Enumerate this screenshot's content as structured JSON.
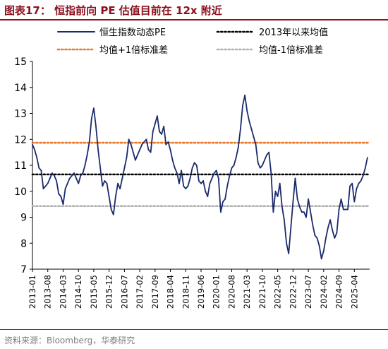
{
  "header": {
    "title": "图表17：  恒指前向 PE 估值目前在 12x 附近"
  },
  "footer": {
    "source": "资料来源：Bloomberg，华泰研究"
  },
  "chart_data": {
    "type": "line",
    "ylim": [
      7,
      15
    ],
    "yticks": [
      7,
      8,
      9,
      10,
      11,
      12,
      13,
      14,
      15
    ],
    "x_tick_labels": [
      "2013-01",
      "2013-08",
      "2014-03",
      "2014-10",
      "2015-05",
      "2015-12",
      "2016-07",
      "2017-02",
      "2017-09",
      "2018-04",
      "2018-11",
      "2019-06",
      "2020-01",
      "2020-08",
      "2021-03",
      "2021-10",
      "2022-05",
      "2022-12",
      "2023-07",
      "2024-02",
      "2024-09",
      "2025-04"
    ],
    "x_range": [
      "2013-01",
      "2025-11"
    ],
    "legend": {
      "position": "top",
      "items": [
        {
          "label": "恒生指数动态PE",
          "style": "solid",
          "color": "#1b2a6b"
        },
        {
          "label": "2013年以来均值",
          "style": "dotted",
          "color": "#000000"
        },
        {
          "label": "均值+1倍标准差",
          "style": "dotted",
          "color": "#e8792b"
        },
        {
          "label": "均值-1倍标准差",
          "style": "dotted",
          "color": "#b3b3b3"
        }
      ]
    },
    "series": [
      {
        "name": "恒生指数动态PE",
        "color": "#1b2a6b",
        "x": [
          "2013-01",
          "2013-02",
          "2013-03",
          "2013-04",
          "2013-05",
          "2013-06",
          "2013-07",
          "2013-08",
          "2013-09",
          "2013-10",
          "2013-11",
          "2013-12",
          "2014-01",
          "2014-02",
          "2014-03",
          "2014-04",
          "2014-05",
          "2014-06",
          "2014-07",
          "2014-08",
          "2014-09",
          "2014-10",
          "2014-11",
          "2014-12",
          "2015-01",
          "2015-02",
          "2015-03",
          "2015-04",
          "2015-05",
          "2015-06",
          "2015-07",
          "2015-08",
          "2015-09",
          "2015-10",
          "2015-11",
          "2015-12",
          "2016-01",
          "2016-02",
          "2016-03",
          "2016-04",
          "2016-05",
          "2016-06",
          "2016-07",
          "2016-08",
          "2016-09",
          "2016-10",
          "2016-11",
          "2016-12",
          "2017-01",
          "2017-02",
          "2017-03",
          "2017-04",
          "2017-05",
          "2017-06",
          "2017-07",
          "2017-08",
          "2017-09",
          "2017-10",
          "2017-11",
          "2017-12",
          "2018-01",
          "2018-02",
          "2018-03",
          "2018-04",
          "2018-05",
          "2018-06",
          "2018-07",
          "2018-08",
          "2018-09",
          "2018-10",
          "2018-11",
          "2018-12",
          "2019-01",
          "2019-02",
          "2019-03",
          "2019-04",
          "2019-05",
          "2019-06",
          "2019-07",
          "2019-08",
          "2019-09",
          "2019-10",
          "2019-11",
          "2019-12",
          "2020-01",
          "2020-02",
          "2020-03",
          "2020-04",
          "2020-05",
          "2020-06",
          "2020-07",
          "2020-08",
          "2020-09",
          "2020-10",
          "2020-11",
          "2020-12",
          "2021-01",
          "2021-02",
          "2021-03",
          "2021-04",
          "2021-05",
          "2021-06",
          "2021-07",
          "2021-08",
          "2021-09",
          "2021-10",
          "2021-11",
          "2021-12",
          "2022-01",
          "2022-02",
          "2022-03",
          "2022-04",
          "2022-05",
          "2022-06",
          "2022-07",
          "2022-08",
          "2022-09",
          "2022-10",
          "2022-11",
          "2022-12",
          "2023-01",
          "2023-02",
          "2023-03",
          "2023-04",
          "2023-05",
          "2023-06",
          "2023-07",
          "2023-08",
          "2023-09",
          "2023-10",
          "2023-11",
          "2023-12",
          "2024-01",
          "2024-02",
          "2024-03",
          "2024-04",
          "2024-05",
          "2024-06",
          "2024-07",
          "2024-08",
          "2024-09",
          "2024-10",
          "2024-11",
          "2024-12",
          "2025-01",
          "2025-02",
          "2025-03",
          "2025-04",
          "2025-05",
          "2025-06",
          "2025-07",
          "2025-08",
          "2025-09",
          "2025-10"
        ],
        "values": [
          11.8,
          11.6,
          11.3,
          10.9,
          10.8,
          10.1,
          10.2,
          10.3,
          10.5,
          10.7,
          10.6,
          10.4,
          9.9,
          9.8,
          9.5,
          10.1,
          10.3,
          10.5,
          10.6,
          10.7,
          10.5,
          10.3,
          10.6,
          10.7,
          11.0,
          11.4,
          11.9,
          12.8,
          13.2,
          12.5,
          11.6,
          10.9,
          10.2,
          10.4,
          10.3,
          9.8,
          9.3,
          9.1,
          9.8,
          10.3,
          10.1,
          10.5,
          10.9,
          11.3,
          12.0,
          11.8,
          11.5,
          11.2,
          11.4,
          11.6,
          11.8,
          11.9,
          12.0,
          11.6,
          11.5,
          12.3,
          12.6,
          12.9,
          12.3,
          12.2,
          12.5,
          11.8,
          11.9,
          11.6,
          11.2,
          10.9,
          10.7,
          10.3,
          10.8,
          10.2,
          10.1,
          10.2,
          10.5,
          10.9,
          11.1,
          11.0,
          10.4,
          10.3,
          10.4,
          10.0,
          9.8,
          10.3,
          10.5,
          10.7,
          10.8,
          10.5,
          9.2,
          9.6,
          9.7,
          10.2,
          10.6,
          10.9,
          11.0,
          11.3,
          11.7,
          12.4,
          13.3,
          13.7,
          13.1,
          12.7,
          12.4,
          12.1,
          11.8,
          11.1,
          10.9,
          11.0,
          11.2,
          11.4,
          11.5,
          10.7,
          9.2,
          10.0,
          9.8,
          10.3,
          9.4,
          8.9,
          8.0,
          7.6,
          8.6,
          9.6,
          10.5,
          9.7,
          9.4,
          9.2,
          9.2,
          9.0,
          9.7,
          9.2,
          8.7,
          8.3,
          8.2,
          7.9,
          7.4,
          7.7,
          8.2,
          8.6,
          8.9,
          8.5,
          8.2,
          8.4,
          9.3,
          9.7,
          9.3,
          9.3,
          9.3,
          10.2,
          10.3,
          9.6,
          10.1,
          10.3,
          10.4,
          10.6,
          10.9,
          11.3
        ]
      },
      {
        "name": "2013年以来均值",
        "value": 10.65,
        "color": "#000000"
      },
      {
        "name": "均值+1倍标准差",
        "value": 11.87,
        "color": "#e8792b"
      },
      {
        "name": "均值-1倍标准差",
        "value": 9.43,
        "color": "#b3b3b3"
      }
    ]
  }
}
